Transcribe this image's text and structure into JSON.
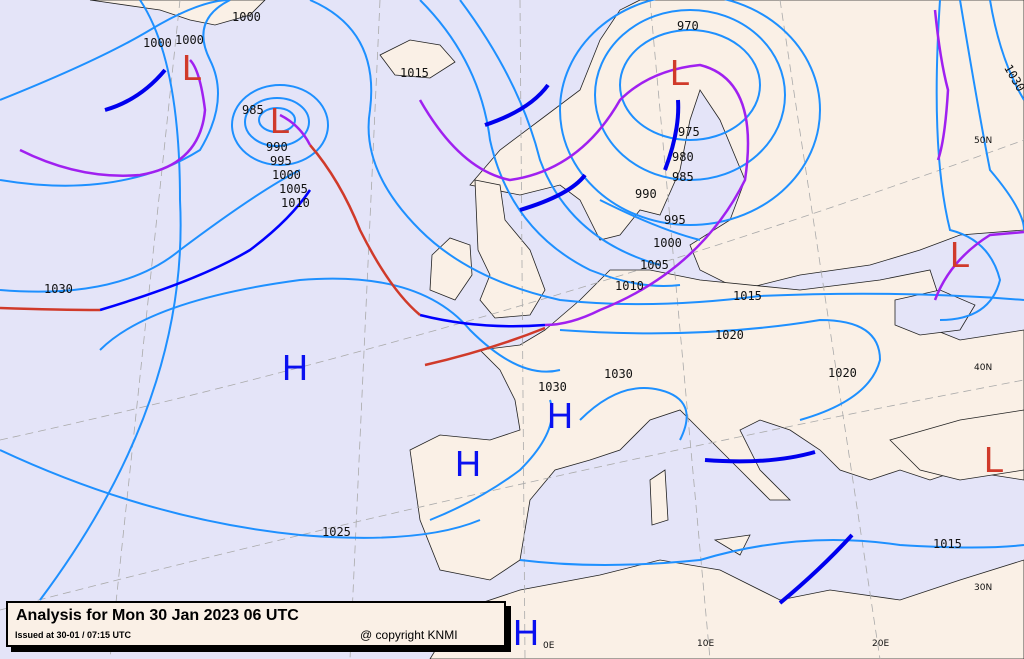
{
  "caption": {
    "title": "Analysis for Mon 30 Jan 2023 06 UTC",
    "issued": "Issued at 30-01 / 07:15 UTC",
    "copyright": "@ copyright KNMI"
  },
  "colors": {
    "sea": "#e4e4f8",
    "land": "#faf0e6",
    "isobar": "#1e90ff",
    "cold_front": "#0000ff",
    "warm_front": "#d03a2a",
    "occluded_front": "#a020f0",
    "trough": "#0000ee",
    "low_symbol": "#d03a2a",
    "high_symbol": "#0a10f0"
  },
  "pressure_centers": {
    "lows": [
      "L",
      "L",
      "L",
      "L",
      "L"
    ],
    "highs": [
      "H",
      "H",
      "H",
      "H"
    ]
  },
  "isobar_labels": [
    "1000",
    "1000",
    "1000",
    "1015",
    "985",
    "990",
    "995",
    "1000",
    "1005",
    "1010",
    "970",
    "975",
    "980",
    "985",
    "990",
    "995",
    "1000",
    "1005",
    "1010",
    "1015",
    "1020",
    "1020",
    "1030",
    "1030",
    "1030",
    "1025",
    "1015",
    "1030"
  ],
  "graticule_labels": [
    "50N",
    "40N",
    "30N",
    "0E",
    "10E",
    "20E"
  ]
}
